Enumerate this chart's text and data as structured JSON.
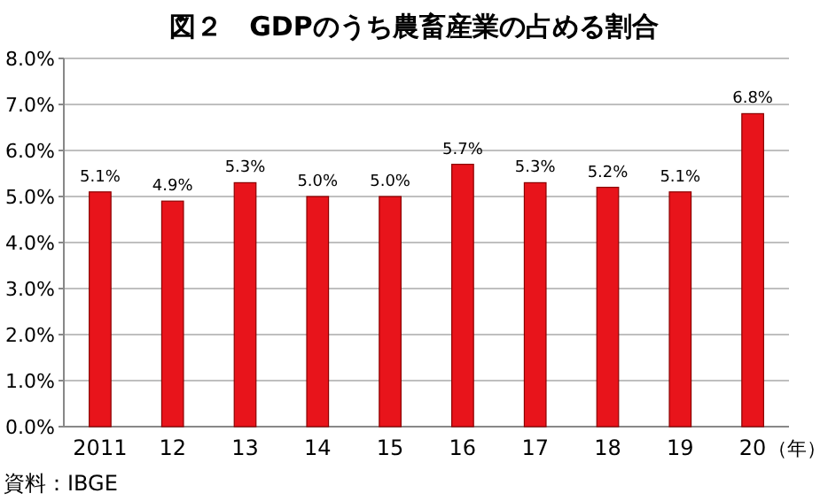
{
  "chart_data": {
    "type": "bar",
    "title": "図２　GDPのうち農畜産業の占める割合",
    "xlabel": "（年）",
    "annotations": [
      "資料：IBGE"
    ],
    "categories": [
      "2011",
      "12",
      "13",
      "14",
      "15",
      "16",
      "17",
      "18",
      "19",
      "20"
    ],
    "values": [
      5.1,
      4.9,
      5.3,
      5.0,
      5.0,
      5.7,
      5.3,
      5.2,
      5.1,
      6.8
    ],
    "value_labels": [
      "5.1%",
      "4.9%",
      "5.3%",
      "5.0%",
      "5.0%",
      "5.7%",
      "5.3%",
      "5.2%",
      "5.1%",
      "6.8%"
    ],
    "color": "#e8141b",
    "ylim": [
      0,
      8
    ],
    "yticks": [
      {
        "value": 0,
        "label": "0.0%"
      },
      {
        "value": 1,
        "label": "1.0%"
      },
      {
        "value": 2,
        "label": "2.0%"
      },
      {
        "value": 3,
        "label": "3.0%"
      },
      {
        "value": 4,
        "label": "4.0%"
      },
      {
        "value": 5,
        "label": "5.0%"
      },
      {
        "value": 6,
        "label": "6.0%"
      },
      {
        "value": 7,
        "label": "7.0%"
      },
      {
        "value": 8,
        "label": "8.0%"
      }
    ],
    "grid": "y"
  }
}
